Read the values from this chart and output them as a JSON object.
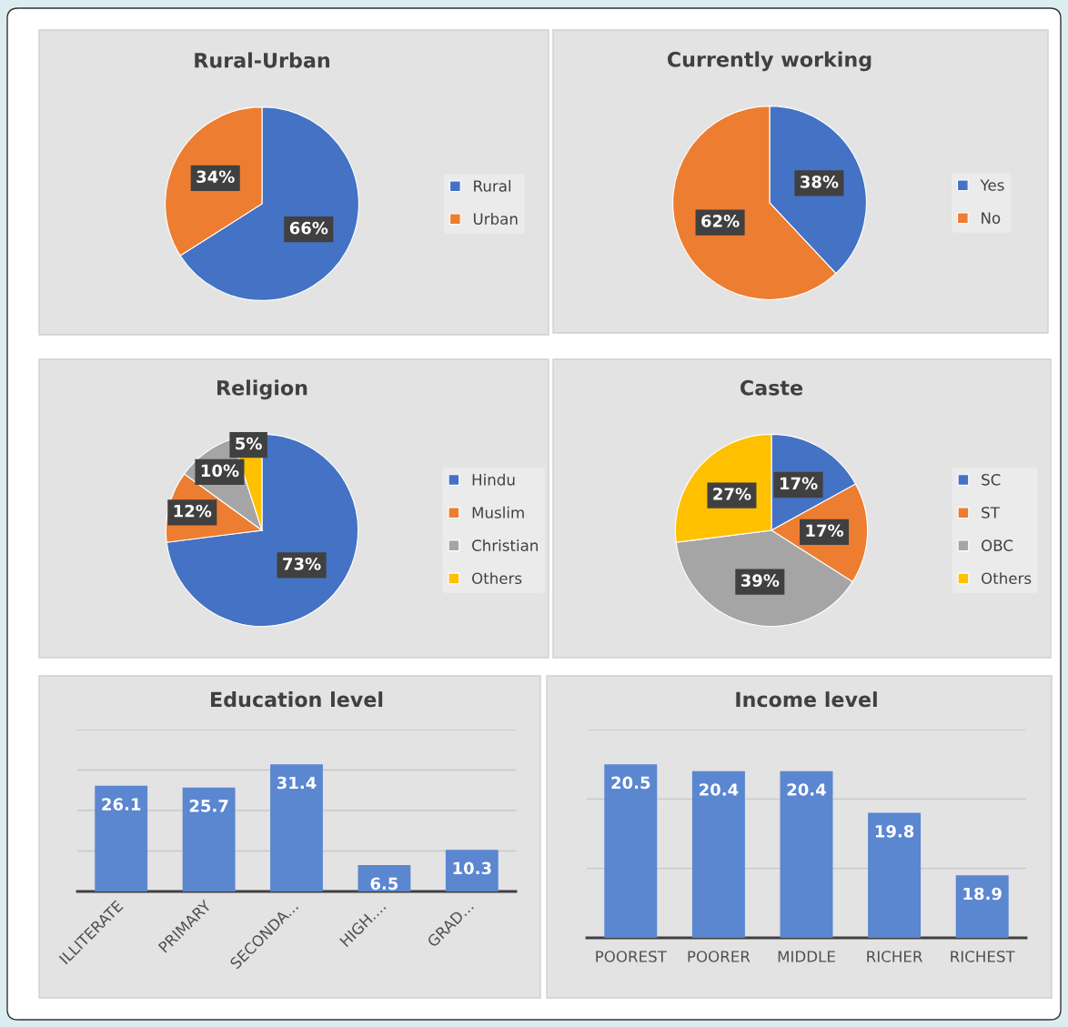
{
  "chart_data": [
    {
      "type": "pie",
      "title": "Rural-Urban",
      "categories": [
        "Rural",
        "Urban"
      ],
      "values": [
        66,
        34
      ],
      "colors": [
        "#4472c4",
        "#ed7d31"
      ],
      "legend": "right",
      "value_labels": [
        "66%",
        "34%"
      ]
    },
    {
      "type": "pie",
      "title": "Currently working",
      "categories": [
        "Yes",
        "No"
      ],
      "values": [
        38,
        62
      ],
      "colors": [
        "#4472c4",
        "#ed7d31"
      ],
      "legend": "right",
      "value_labels": [
        "38%",
        "62%"
      ]
    },
    {
      "type": "pie",
      "title": "Religion",
      "categories": [
        "Hindu",
        "Muslim",
        "Christian",
        "Others"
      ],
      "values": [
        73,
        12,
        10,
        5
      ],
      "colors": [
        "#4472c4",
        "#ed7d31",
        "#a5a5a5",
        "#ffc000"
      ],
      "legend": "right",
      "value_labels": [
        "73%",
        "12%",
        "10%",
        "5%"
      ]
    },
    {
      "type": "pie",
      "title": "Caste",
      "categories": [
        "SC",
        "ST",
        "OBC",
        "Others"
      ],
      "values": [
        17,
        17,
        39,
        27
      ],
      "colors": [
        "#4472c4",
        "#ed7d31",
        "#a5a5a5",
        "#ffc000"
      ],
      "legend": "right",
      "value_labels": [
        "17%",
        "17%",
        "39%",
        "27%"
      ]
    },
    {
      "type": "bar",
      "title": "Education level",
      "categories": [
        "ILLITERATE",
        "PRIMARY",
        "SECONDA...",
        "HIGH....",
        "GRAD..."
      ],
      "values": [
        26.1,
        25.7,
        31.4,
        6.5,
        10.3
      ],
      "color": "#5b86d0",
      "ylim": [
        0,
        40
      ],
      "yticks": [
        {
          "value": 0,
          "label": null
        },
        {
          "value": 10,
          "label": null
        },
        {
          "value": 20,
          "label": null
        },
        {
          "value": 30,
          "label": null
        },
        {
          "value": 40,
          "label": null
        }
      ],
      "grid": "y",
      "tick_labels": "x",
      "data_labels": true
    },
    {
      "type": "bar",
      "title": "Income level",
      "categories": [
        "POOREST",
        "POORER",
        "MIDDLE",
        "RICHER",
        "RICHEST"
      ],
      "values": [
        20.5,
        20.4,
        20.4,
        19.8,
        18.9
      ],
      "color": "#5b86d0",
      "ylim": [
        18,
        21
      ],
      "yticks": [
        {
          "value": 18,
          "label": null
        },
        {
          "value": 19,
          "label": null
        },
        {
          "value": 20,
          "label": null
        },
        {
          "value": 21,
          "label": null
        }
      ],
      "grid": "y",
      "tick_labels": "x",
      "data_labels": true
    }
  ]
}
